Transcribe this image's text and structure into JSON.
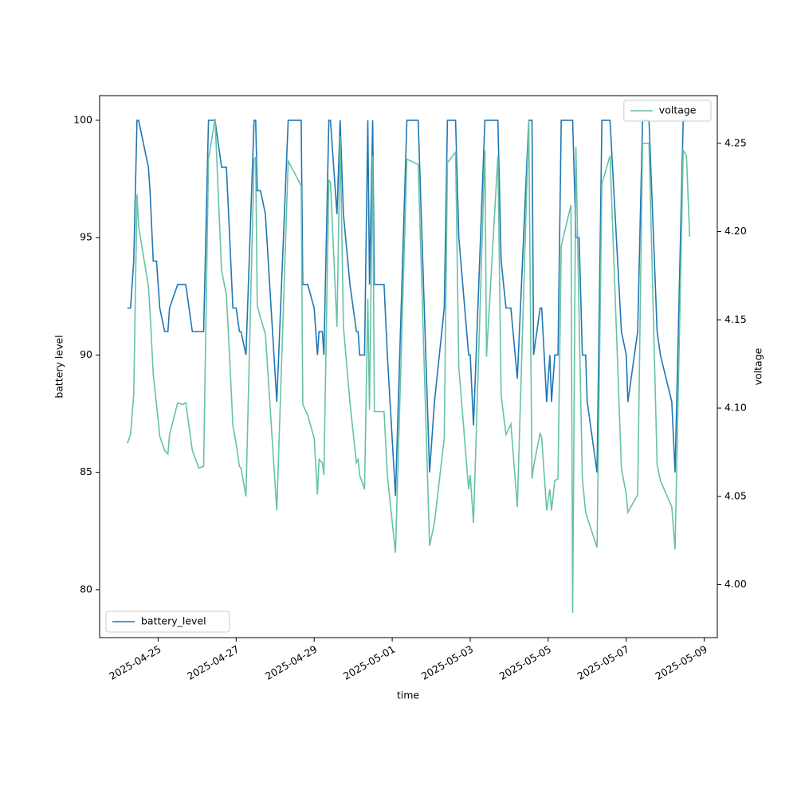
{
  "chart_data": {
    "type": "line",
    "xlabel": "time",
    "ylabel": "battery level",
    "y2label": "voltage",
    "x": [
      "2025-04-24T05:00",
      "2025-04-24T07:00",
      "2025-04-24T09:00",
      "2025-04-24T11:00",
      "2025-04-24T12:00",
      "2025-04-24T18:00",
      "2025-04-24T19:00",
      "2025-04-24T21:00",
      "2025-04-24T23:00",
      "2025-04-25T01:00",
      "2025-04-25T04:00",
      "2025-04-25T06:00",
      "2025-04-25T07:00",
      "2025-04-25T12:00",
      "2025-04-25T15:00",
      "2025-04-25T17:00",
      "2025-04-25T21:00",
      "2025-04-26T01:00",
      "2025-04-26T04:00",
      "2025-04-26T07:00",
      "2025-04-26T11:00",
      "2025-04-26T15:00",
      "2025-04-26T18:00",
      "2025-04-26T20:00",
      "2025-04-26T22:00",
      "2025-04-27T00:00",
      "2025-04-27T02:00",
      "2025-04-27T03:00",
      "2025-04-27T06:00",
      "2025-04-27T11:00",
      "2025-04-27T12:00",
      "2025-04-27T13:00",
      "2025-04-27T15:00",
      "2025-04-27T18:00",
      "2025-04-28T01:00",
      "2025-04-28T08:00",
      "2025-04-28T16:00",
      "2025-04-28T17:00",
      "2025-04-28T20:00",
      "2025-04-29T00:00",
      "2025-04-29T02:00",
      "2025-04-29T03:00",
      "2025-04-29T05:00",
      "2025-04-29T06:00",
      "2025-04-29T09:00",
      "2025-04-29T10:00",
      "2025-04-29T14:00",
      "2025-04-29T16:00",
      "2025-04-29T18:00",
      "2025-04-29T22:00",
      "2025-04-30T02:00",
      "2025-04-30T03:00",
      "2025-04-30T04:00",
      "2025-04-30T07:00",
      "2025-04-30T09:00",
      "2025-04-30T10:00",
      "2025-04-30T12:00",
      "2025-04-30T13:00",
      "2025-04-30T19:00",
      "2025-04-30T21:00",
      "2025-05-01T02:00",
      "2025-05-01T09:00",
      "2025-05-01T16:00",
      "2025-05-01T23:00",
      "2025-05-02T02:00",
      "2025-05-02T08:00",
      "2025-05-02T10:00",
      "2025-05-02T15:00",
      "2025-05-02T17:00",
      "2025-05-02T23:00",
      "2025-05-03T00:00",
      "2025-05-03T02:00",
      "2025-05-03T09:00",
      "2025-05-03T10:00",
      "2025-05-03T17:00",
      "2025-05-03T19:00",
      "2025-05-03T22:00",
      "2025-05-04T01:00",
      "2025-05-04T05:00",
      "2025-05-04T12:00",
      "2025-05-04T14:00",
      "2025-05-04T15:00",
      "2025-05-04T19:00",
      "2025-05-04T20:00",
      "2025-05-04T23:00",
      "2025-05-05T01:00",
      "2025-05-05T02:00",
      "2025-05-05T04:00",
      "2025-05-05T06:00",
      "2025-05-05T08:00",
      "2025-05-05T14:00",
      "2025-05-05T15:00",
      "2025-05-05T17:00",
      "2025-05-05T19:00",
      "2025-05-05T21:00",
      "2025-05-05T23:00",
      "2025-05-06T00:00",
      "2025-05-06T06:00",
      "2025-05-06T09:00",
      "2025-05-06T14:00",
      "2025-05-06T21:00",
      "2025-05-07T00:00",
      "2025-05-07T01:00",
      "2025-05-07T07:00",
      "2025-05-07T10:00",
      "2025-05-07T14:00",
      "2025-05-07T19:00",
      "2025-05-07T21:00",
      "2025-05-08T04:00",
      "2025-05-08T06:00",
      "2025-05-08T11:00",
      "2025-05-08T13:00",
      "2025-05-08T15:00"
    ],
    "series": [
      {
        "name": "battery_level",
        "color": "#1f77b4",
        "axis": "y",
        "legend_loc": "lower left",
        "values": [
          92,
          92,
          94,
          100,
          100,
          98,
          97,
          94,
          94,
          92,
          91,
          91,
          92,
          93,
          93,
          93,
          91,
          91,
          91,
          100,
          100,
          98,
          98,
          95,
          92,
          92,
          91,
          91,
          90,
          100,
          100,
          97,
          97,
          96,
          88,
          100,
          100,
          93,
          93,
          92,
          90,
          91,
          91,
          90,
          100,
          100,
          96,
          100,
          96,
          93,
          91,
          91,
          90,
          90,
          100,
          93,
          100,
          93,
          93,
          90,
          84,
          100,
          100,
          85,
          88,
          92,
          100,
          100,
          95,
          90,
          90,
          87,
          100,
          100,
          100,
          94,
          92,
          92,
          89,
          100,
          100,
          90,
          92,
          92,
          88,
          90,
          88,
          90,
          90,
          100,
          100,
          100,
          95,
          95,
          90,
          90,
          88,
          85,
          100,
          100,
          91,
          90,
          88,
          91,
          100,
          100,
          91,
          90,
          88,
          85,
          100,
          100,
          null
        ]
      },
      {
        "name": "voltage",
        "color": "#66c2a5",
        "axis": "y2",
        "legend_loc": "upper right",
        "values": [
          4.08,
          4.085,
          4.108,
          4.221,
          4.203,
          4.169,
          4.155,
          4.119,
          4.102,
          4.084,
          4.076,
          4.074,
          4.085,
          4.103,
          4.102,
          4.103,
          4.076,
          4.066,
          4.067,
          4.241,
          4.264,
          4.178,
          4.164,
          4.128,
          4.09,
          4.08,
          4.067,
          4.066,
          4.05,
          4.241,
          4.242,
          4.158,
          4.151,
          4.142,
          4.042,
          4.24,
          4.226,
          4.102,
          4.096,
          4.083,
          4.051,
          4.071,
          4.069,
          4.062,
          4.229,
          4.228,
          4.146,
          4.254,
          4.146,
          4.103,
          4.069,
          4.071,
          4.062,
          4.054,
          4.162,
          4.099,
          4.243,
          4.098,
          4.098,
          4.062,
          4.018,
          4.241,
          4.238,
          4.022,
          4.035,
          4.083,
          4.239,
          4.245,
          4.123,
          4.054,
          4.062,
          4.035,
          4.246,
          4.129,
          4.243,
          4.107,
          4.085,
          4.091,
          4.044,
          4.263,
          4.06,
          4.067,
          4.086,
          4.083,
          4.042,
          4.054,
          4.042,
          4.059,
          4.06,
          4.192,
          4.215,
          3.984,
          4.248,
          4.151,
          4.06,
          4.041,
          4.038,
          4.021,
          4.227,
          4.243,
          4.066,
          4.051,
          4.041,
          4.051,
          4.25,
          4.25,
          4.068,
          4.059,
          4.044,
          4.02,
          4.246,
          4.243,
          4.197
        ]
      }
    ],
    "xlim": [
      "2025-04-23T12:00",
      "2025-05-09T08:00"
    ],
    "xticks": [
      "2025-04-25",
      "2025-04-27",
      "2025-04-29",
      "2025-05-01",
      "2025-05-03",
      "2025-05-05",
      "2025-05-07",
      "2025-05-09"
    ],
    "ylim": [
      77.96,
      101.05
    ],
    "yticks": [
      80,
      85,
      90,
      95,
      100
    ],
    "y2lim": [
      3.97,
      4.277
    ],
    "y2ticks": [
      {
        "value": 4,
        "label": "4.00"
      },
      4.05,
      {
        "value": 4.1,
        "label": "4.10"
      },
      4.15,
      {
        "value": 4.2,
        "label": "4.20"
      },
      4.25
    ]
  }
}
